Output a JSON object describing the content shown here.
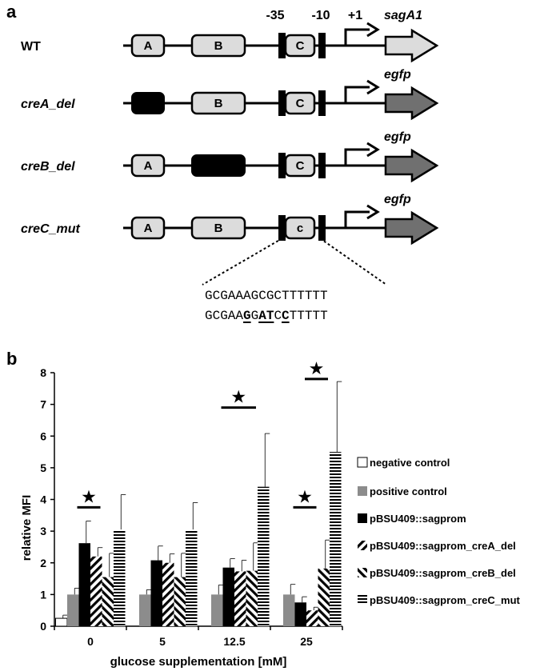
{
  "panel_a": {
    "label": "a",
    "markers": {
      "m35": "-35",
      "m10": "-10",
      "p1": "+1"
    },
    "constructs": [
      {
        "name": "WT",
        "italic": false,
        "gene": "sagA1",
        "box_a": "A",
        "box_a_deleted": false,
        "box_b": "B",
        "box_b_deleted": false,
        "box_c": "C",
        "gene_color": "#dcdcdc"
      },
      {
        "name": "creA_del",
        "italic": true,
        "gene": "egfp",
        "box_a": "",
        "box_a_deleted": true,
        "box_b": "B",
        "box_b_deleted": false,
        "box_c": "C",
        "gene_color": "#707070"
      },
      {
        "name": "creB_del",
        "italic": true,
        "gene": "egfp",
        "box_a": "A",
        "box_a_deleted": false,
        "box_b": "",
        "box_b_deleted": true,
        "box_c": "C",
        "gene_color": "#707070"
      },
      {
        "name": "creC_mut",
        "italic": true,
        "gene": "egfp",
        "box_a": "A",
        "box_a_deleted": false,
        "box_b": "B",
        "box_b_deleted": false,
        "box_c": "c",
        "gene_color": "#707070"
      }
    ],
    "sequence_wt": "GCGAAAGCGCTTTTTT",
    "sequence_mut": [
      {
        "t": "GCGAA",
        "hl": false
      },
      {
        "t": "G",
        "hl": true
      },
      {
        "t": "G",
        "hl": false
      },
      {
        "t": "AT",
        "hl": true
      },
      {
        "t": "C",
        "hl": false
      },
      {
        "t": "C",
        "hl": true
      },
      {
        "t": "TTTTT",
        "hl": false
      }
    ]
  },
  "panel_b": {
    "label": "b",
    "chart_data": {
      "type": "bar",
      "ylabel": "relative MFI",
      "xlabel": "glucose supplementation [mM]",
      "ylim": [
        0,
        8
      ],
      "yticks": [
        "0",
        "1",
        "2",
        "3",
        "4",
        "5",
        "6",
        "7",
        "8"
      ],
      "categories": [
        "0",
        "5",
        "12.5",
        "25"
      ],
      "series": [
        {
          "name": "negative control",
          "pattern": "white",
          "values": [
            0.25,
            null,
            null,
            null
          ],
          "errors": [
            0.1,
            null,
            null,
            null
          ]
        },
        {
          "name": "positive control",
          "pattern": "gray",
          "values": [
            1.0,
            1.0,
            1.0,
            1.0
          ],
          "errors": [
            0.2,
            0.15,
            0.3,
            0.32
          ]
        },
        {
          "name": "pBSU409::sagprom",
          "pattern": "black",
          "values": [
            2.62,
            2.08,
            1.85,
            0.75
          ],
          "errors": [
            0.7,
            0.45,
            0.28,
            0.18
          ]
        },
        {
          "name": "pBSU409::sagprom_creA_del",
          "pattern": "diag-back",
          "values": [
            2.2,
            2.0,
            1.73,
            0.5
          ],
          "errors": [
            0.28,
            0.28,
            0.35,
            0.1
          ]
        },
        {
          "name": "pBSU409::sagprom_creB_del",
          "pattern": "diag-fwd",
          "values": [
            1.55,
            1.55,
            1.75,
            1.82
          ],
          "errors": [
            0.75,
            0.75,
            0.88,
            0.9
          ]
        },
        {
          "name": "pBSU409::sagprom_creC_mut",
          "pattern": "hstripe",
          "values": [
            3.05,
            3.05,
            4.4,
            5.5
          ],
          "errors": [
            1.1,
            0.85,
            1.68,
            2.22
          ]
        }
      ],
      "significance": [
        {
          "category": "0",
          "from": 2,
          "to": 3,
          "y": 3.75
        },
        {
          "category": "12.5",
          "from": 2,
          "to": 4,
          "y": 6.9
        },
        {
          "category": "25",
          "from": 3,
          "to": 4,
          "y": 7.8
        },
        {
          "category": "25",
          "from": 2,
          "to": 3,
          "y": 3.75
        }
      ],
      "star": "★",
      "legend_position": "right"
    }
  }
}
